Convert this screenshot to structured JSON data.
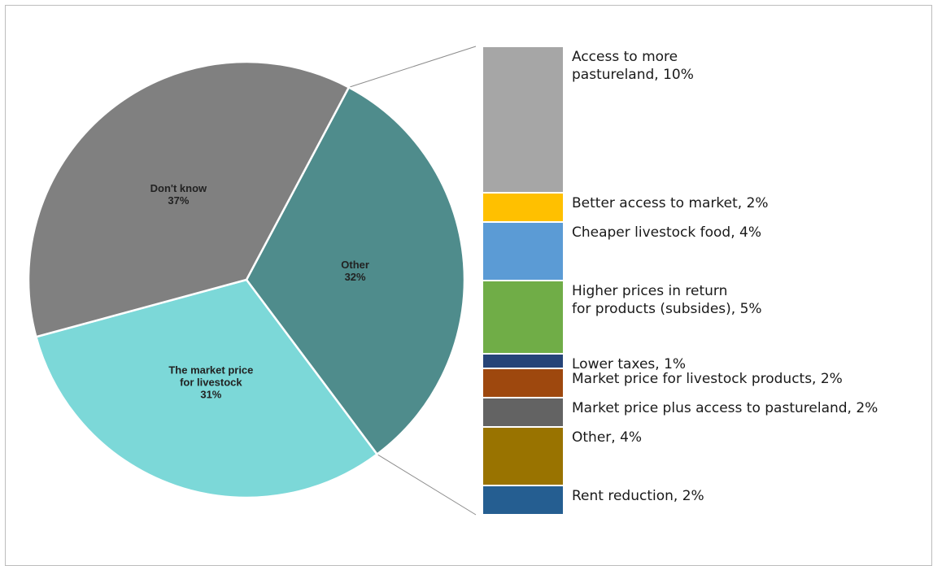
{
  "chart_data": [
    {
      "type": "pie",
      "slices": [
        {
          "label_lines": [
            "Don't know",
            "37%"
          ],
          "value": 37,
          "color": "#808080"
        },
        {
          "label_lines": [
            "Other",
            "32%"
          ],
          "value": 32,
          "color": "#4f8c8c"
        },
        {
          "label_lines": [
            "The market price",
            "for livestock",
            "31%"
          ],
          "value": 31,
          "color": "#7cd8d8"
        }
      ]
    },
    {
      "type": "bar",
      "stacked": true,
      "expands_slice": "Other",
      "segments": [
        {
          "label_lines": [
            "Access to more",
            "pastureland, 10%"
          ],
          "value": 10,
          "color": "#a6a6a6"
        },
        {
          "label_lines": [
            "Better access to market, 2%"
          ],
          "value": 2,
          "color": "#ffc000"
        },
        {
          "label_lines": [
            "Cheaper livestock food, 4%"
          ],
          "value": 4,
          "color": "#5b9bd5"
        },
        {
          "label_lines": [
            "Higher prices in return",
            "for products (subsides), 5%"
          ],
          "value": 5,
          "color": "#70ad47"
        },
        {
          "label_lines": [
            "Lower taxes, 1%"
          ],
          "value": 1,
          "color": "#264478"
        },
        {
          "label_lines": [
            "Market price for livestock products, 2%"
          ],
          "value": 2,
          "color": "#9e480e"
        },
        {
          "label_lines": [
            "Market price plus access to pastureland, 2%"
          ],
          "value": 2,
          "color": "#636363"
        },
        {
          "label_lines": [
            "Other, 4%"
          ],
          "value": 4,
          "color": "#997300"
        },
        {
          "label_lines": [
            "Rent reduction, 2%"
          ],
          "value": 2,
          "color": "#255e91"
        }
      ]
    }
  ]
}
